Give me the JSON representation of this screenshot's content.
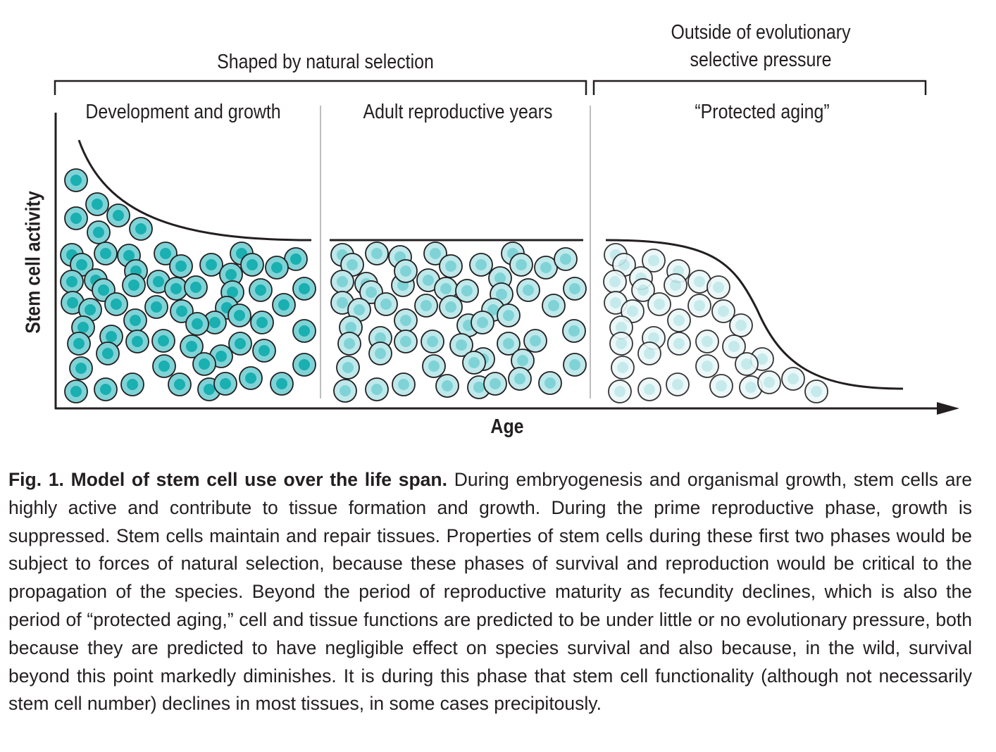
{
  "brackets": {
    "natural_selection": "Shaped by natural selection",
    "outside_line1": "Outside of evolutionary",
    "outside_line2": "selective pressure"
  },
  "phases": {
    "development": "Development and growth",
    "adult": "Adult reproductive years",
    "protected": "“Protected aging”"
  },
  "axes": {
    "y_label": "Stem cell activity",
    "x_label": "Age"
  },
  "colors": {
    "active_cell": "#1aafb0",
    "adult_cell": "#7fd3d6",
    "aged_cell": "#bfe8ea",
    "cell_outline": "#231f20",
    "curve": "#231f20"
  },
  "caption": {
    "title": "Fig. 1. Model of stem cell use over the life span.",
    "body": " During embryogenesis and organismal growth, stem cells are highly active and contribute to tissue formation and growth. During the prime reproductive phase, growth is suppressed. Stem cells maintain and repair tissues. Properties of stem cells during these first two phases would be subject to forces of natural selection, because these phases of survival and re­production would be critical to the propagation of the species. Beyond the period of reproductive maturity as fecundity declines, which is also the period of “protected aging,” cell and tissue functions are predicted to be under little or no evolutionary pressure, both because they are predicted to have negligible effect on species survival and also because, in the wild, survival beyond this point markedly diminishes. It is during this phase that stem cell functionality (although not necessarily stem cell number) declines in most tissues, in some cases precipitously."
  }
}
